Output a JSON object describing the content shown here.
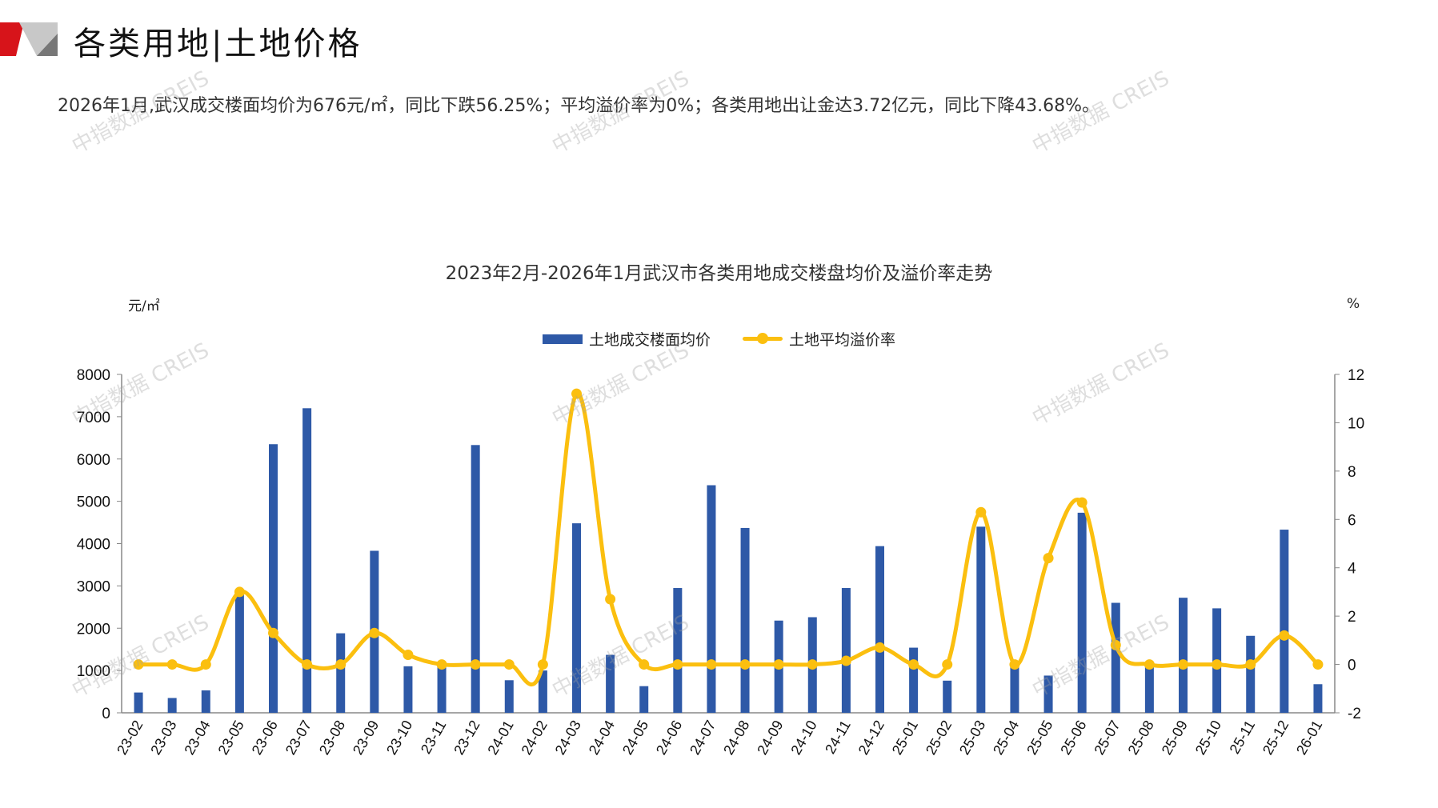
{
  "header": {
    "title": "各类用地|土地价格",
    "summary": "2026年1月,武汉成交楼面均价为676元/㎡，同比下跌56.25%；平均溢价率为0%；各类用地出让金达3.72亿元，同比下降43.68%。"
  },
  "watermark": "中指数据 CREIS",
  "colors": {
    "bar": "#2E59A7",
    "line": "#FBBF0F",
    "accent": "#D7141A"
  },
  "chart_data": {
    "type": "bar+line",
    "title": "2023年2月-2026年1月武汉市各类用地成交楼盘均价及溢价率走势",
    "ylabel_left": "元/㎡",
    "ylabel_right": "%",
    "ylim_left": [
      0,
      8000
    ],
    "ylim_right": [
      -2,
      12
    ],
    "yticks_left": [
      "0",
      "1000",
      "2000",
      "3000",
      "4000",
      "5000",
      "6000",
      "7000",
      "8000"
    ],
    "yticks_right": [
      "-2",
      "0",
      "2",
      "4",
      "6",
      "8",
      "10",
      "12"
    ],
    "legend_position": "top-center",
    "categories": [
      "23-02",
      "23-03",
      "23-04",
      "23-05",
      "23-06",
      "23-07",
      "23-08",
      "23-09",
      "23-10",
      "23-11",
      "23-12",
      "24-01",
      "24-02",
      "24-03",
      "24-04",
      "24-05",
      "24-06",
      "24-07",
      "24-08",
      "24-09",
      "24-10",
      "24-11",
      "24-12",
      "25-01",
      "25-02",
      "25-03",
      "25-04",
      "25-05",
      "25-06",
      "25-07",
      "25-08",
      "25-09",
      "25-10",
      "25-11",
      "25-12",
      "26-01"
    ],
    "series": [
      {
        "name": "土地成交楼面均价",
        "type": "bar",
        "axis": "left",
        "values": [
          480,
          350,
          530,
          2800,
          6350,
          7200,
          1880,
          3830,
          1100,
          1100,
          6330,
          770,
          1000,
          4480,
          1370,
          630,
          2950,
          5380,
          4370,
          2180,
          2260,
          2950,
          3940,
          1540,
          760,
          4400,
          1150,
          880,
          4730,
          2600,
          1150,
          2720,
          2470,
          1820,
          4330,
          676
        ]
      },
      {
        "name": "土地平均溢价率",
        "type": "line",
        "axis": "right",
        "values": [
          0,
          0,
          0,
          3.0,
          1.3,
          0,
          0,
          1.3,
          0.4,
          0,
          0,
          0,
          0,
          11.2,
          2.7,
          0,
          0,
          0,
          0,
          0,
          0,
          0.15,
          0.7,
          0,
          0,
          6.3,
          0,
          4.4,
          6.7,
          0.8,
          0,
          0,
          0,
          0,
          1.2,
          0
        ]
      }
    ]
  }
}
